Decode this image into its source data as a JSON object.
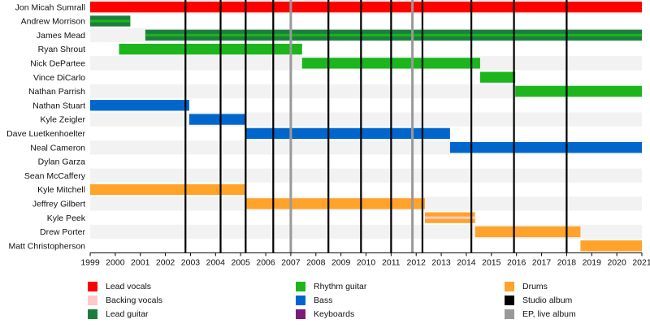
{
  "chart_data": {
    "type": "timeline",
    "x_range": [
      1999,
      2021
    ],
    "x_ticks": [
      "1999",
      "2000",
      "2001",
      "2002",
      "2003",
      "2004",
      "2005",
      "2006",
      "2007",
      "2008",
      "2009",
      "2010",
      "2011",
      "2012",
      "2013",
      "2014",
      "2015",
      "2016",
      "2017",
      "2018",
      "2019",
      "2020",
      "2021"
    ],
    "members": [
      "Jon Micah Sumrall",
      "Andrew Morrison",
      "James Mead",
      "Ryan Shrout",
      "Nick DePartee",
      "Vince DiCarlo",
      "Nathan Parrish",
      "Nathan Stuart",
      "Kyle Zeigler",
      "Dave Luetkenhoelter",
      "Neal Cameron",
      "Dylan Garza",
      "Sean McCaffery",
      "Kyle Mitchell",
      "Jeffrey Gilbert",
      "Kyle Peek",
      "Drew Porter",
      "Matt Christopherson"
    ],
    "roles": {
      "lead_vocals": "#ff0000",
      "backing_vocals": "#ffc8c8",
      "lead_guitar": "#1a7f3c",
      "rhythm_guitar": "#1cb51c",
      "bass": "#0066cc",
      "keyboards": "#7b1c7b",
      "drums": "#ffa32a",
      "studio_album": "#000000",
      "ep_live": "#999999"
    },
    "bars": [
      {
        "member": 0,
        "role": "lead_vocals",
        "start": 1999.0,
        "end": 2021.0
      },
      {
        "member": 1,
        "role": "lead_guitar",
        "start": 1999.0,
        "end": 2000.6
      },
      {
        "member": 1,
        "role": "rhythm_guitar",
        "start": 1999.0,
        "end": 2000.6,
        "overlay": true
      },
      {
        "member": 2,
        "role": "lead_guitar",
        "start": 2001.2,
        "end": 2021.0
      },
      {
        "member": 2,
        "role": "rhythm_guitar",
        "start": 2001.2,
        "end": 2021.0,
        "overlay": true
      },
      {
        "member": 3,
        "role": "lead_guitar",
        "start": 2000.15,
        "end": 2007.45,
        "thin": true
      },
      {
        "member": 3,
        "role": "rhythm_guitar",
        "start": 2000.15,
        "end": 2007.45
      },
      {
        "member": 4,
        "role": "rhythm_guitar",
        "start": 2007.45,
        "end": 2014.55
      },
      {
        "member": 5,
        "role": "rhythm_guitar",
        "start": 2014.55,
        "end": 2015.95
      },
      {
        "member": 6,
        "role": "rhythm_guitar",
        "start": 2015.95,
        "end": 2021.0
      },
      {
        "member": 7,
        "role": "bass",
        "start": 1999.0,
        "end": 2002.95
      },
      {
        "member": 8,
        "role": "bass",
        "start": 2002.95,
        "end": 2005.2
      },
      {
        "member": 9,
        "role": "bass",
        "start": 2005.2,
        "end": 2013.35
      },
      {
        "member": 10,
        "role": "bass",
        "start": 2013.35,
        "end": 2021.0
      },
      {
        "member": 13,
        "role": "drums",
        "start": 1999.0,
        "end": 2005.2
      },
      {
        "member": 14,
        "role": "drums",
        "start": 2005.2,
        "end": 2012.35
      },
      {
        "member": 15,
        "role": "drums",
        "start": 2012.35,
        "end": 2014.35
      },
      {
        "member": 15,
        "role": "backing_vocals",
        "start": 2012.35,
        "end": 2014.35,
        "overlay": true
      },
      {
        "member": 16,
        "role": "drums",
        "start": 2014.35,
        "end": 2018.55
      },
      {
        "member": 17,
        "role": "drums",
        "start": 2018.55,
        "end": 2021.0
      }
    ],
    "studio_album_years": [
      2002.8,
      2004.2,
      2005.2,
      2006.3,
      2008.5,
      2009.8,
      2011.0,
      2012.25,
      2014.2,
      2015.9,
      2018.0
    ],
    "ep_live_years": [
      2007.0,
      2011.85
    ]
  },
  "legend": [
    {
      "label": "Lead vocals",
      "role": "lead_vocals"
    },
    {
      "label": "Backing vocals",
      "role": "backing_vocals"
    },
    {
      "label": "Lead guitar",
      "role": "lead_guitar"
    },
    {
      "label": "Rhythm guitar",
      "role": "rhythm_guitar"
    },
    {
      "label": "Bass",
      "role": "bass"
    },
    {
      "label": "Keyboards",
      "role": "keyboards"
    },
    {
      "label": "Drums",
      "role": "drums"
    },
    {
      "label": "Studio album",
      "role": "studio_album"
    },
    {
      "label": "EP, live album",
      "role": "ep_live"
    }
  ]
}
